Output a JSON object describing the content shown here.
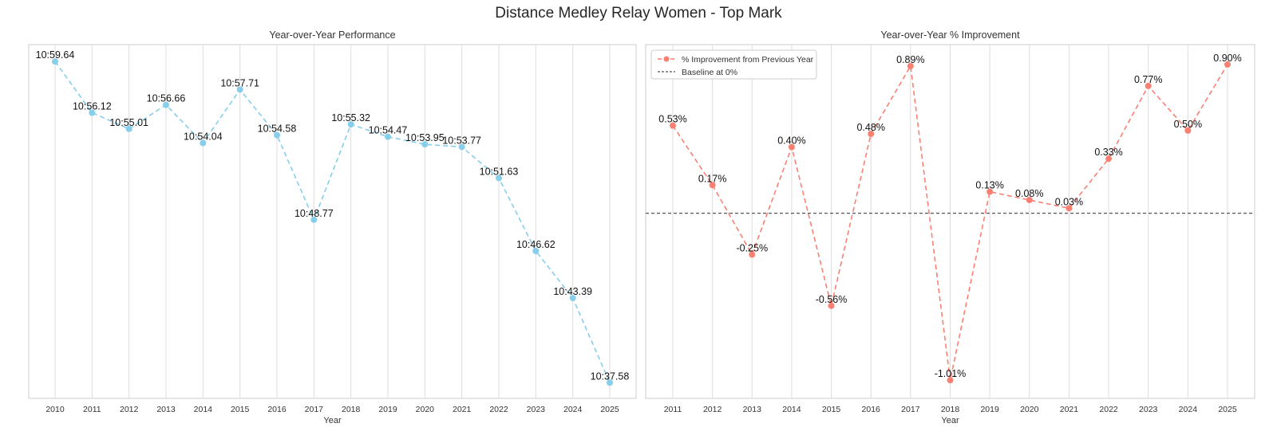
{
  "figure_title": "Distance Medley Relay Women - Top Mark",
  "colors": {
    "performance": "#87ceeb",
    "improvement": "#fa8072",
    "baseline": "#555555",
    "grid": "#dddddd",
    "frame": "#cccccc"
  },
  "chart_data": [
    {
      "type": "line",
      "title": "Year-over-Year Performance",
      "xlabel": "Year",
      "ylabel": "",
      "grid": "vertical",
      "x": [
        2010,
        2011,
        2012,
        2013,
        2014,
        2015,
        2016,
        2017,
        2018,
        2019,
        2020,
        2021,
        2022,
        2023,
        2024,
        2025
      ],
      "series": [
        {
          "line_style": "dashed",
          "marker": "circle",
          "values_seconds": [
            659.64,
            656.12,
            655.01,
            656.66,
            654.04,
            657.71,
            654.58,
            648.77,
            655.32,
            654.47,
            653.95,
            653.77,
            651.63,
            646.62,
            643.39,
            637.58
          ],
          "data_labels": [
            "10:59.64",
            "10:56.12",
            "10:55.01",
            "10:56.66",
            "10:54.04",
            "10:57.71",
            "10:54.58",
            "10:48.77",
            "10:55.32",
            "10:54.47",
            "10:53.95",
            "10:53.77",
            "10:51.63",
            "10:46.62",
            "10:43.39",
            "10:37.58"
          ]
        }
      ],
      "ylim": [
        636.5,
        660.8
      ],
      "y_inverted": false,
      "yticks_shown": false
    },
    {
      "type": "line",
      "title": "Year-over-Year % Improvement",
      "xlabel": "Year",
      "ylabel": "",
      "grid": "vertical",
      "legend": "top-left",
      "x": [
        2011,
        2012,
        2013,
        2014,
        2015,
        2016,
        2017,
        2018,
        2019,
        2020,
        2021,
        2022,
        2023,
        2024,
        2025
      ],
      "series": [
        {
          "name": "% Improvement from Previous Year",
          "line_style": "dashed",
          "marker": "circle",
          "values": [
            0.53,
            0.17,
            -0.25,
            0.4,
            -0.56,
            0.48,
            0.89,
            -1.01,
            0.13,
            0.08,
            0.03,
            0.33,
            0.77,
            0.5,
            0.9
          ],
          "data_labels": [
            "0.53%",
            "0.17%",
            "-0.25%",
            "0.40%",
            "-0.56%",
            "0.48%",
            "0.89%",
            "-1.01%",
            "0.13%",
            "0.08%",
            "0.03%",
            "0.33%",
            "0.77%",
            "0.50%",
            "0.90%"
          ]
        }
      ],
      "baseline": {
        "name": "Baseline at 0%",
        "value": 0,
        "line_style": "dashed"
      },
      "ylim": [
        -1.12,
        1.02
      ],
      "yticks_shown": false
    }
  ]
}
